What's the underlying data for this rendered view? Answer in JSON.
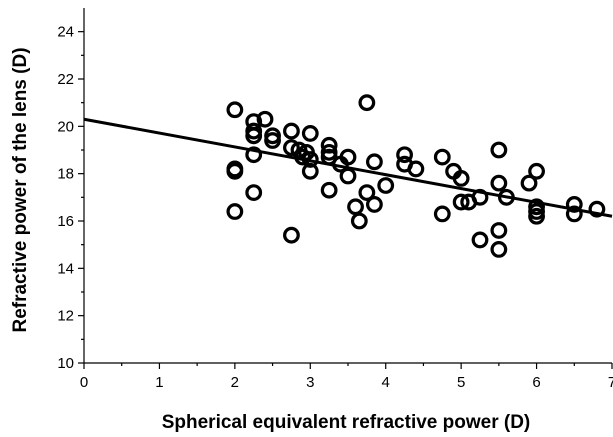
{
  "chart_data": {
    "type": "scatter",
    "title": "",
    "xlabel": "Spherical equivalent refractive power (D)",
    "ylabel": "Refractive power of the lens (D)",
    "xlim": [
      0,
      7
    ],
    "ylim": [
      10,
      25
    ],
    "xticks": [
      0,
      1,
      2,
      3,
      4,
      5,
      6,
      7
    ],
    "yticks": [
      10,
      12,
      14,
      16,
      18,
      20,
      22,
      24
    ],
    "grid": false,
    "legend": "none",
    "series": [
      {
        "points": [
          [
            2.0,
            20.7
          ],
          [
            2.0,
            18.2
          ],
          [
            2.0,
            18.1
          ],
          [
            2.0,
            16.4
          ],
          [
            2.25,
            20.2
          ],
          [
            2.25,
            19.8
          ],
          [
            2.25,
            19.6
          ],
          [
            2.25,
            18.8
          ],
          [
            2.25,
            17.2
          ],
          [
            2.4,
            20.3
          ],
          [
            2.5,
            19.6
          ],
          [
            2.5,
            19.4
          ],
          [
            2.75,
            19.8
          ],
          [
            2.75,
            19.1
          ],
          [
            2.75,
            15.4
          ],
          [
            2.85,
            19.0
          ],
          [
            2.9,
            18.7
          ],
          [
            2.95,
            18.9
          ],
          [
            3.0,
            19.7
          ],
          [
            3.0,
            18.6
          ],
          [
            3.0,
            18.1
          ],
          [
            3.25,
            19.2
          ],
          [
            3.25,
            18.9
          ],
          [
            3.25,
            18.7
          ],
          [
            3.25,
            17.3
          ],
          [
            3.4,
            18.4
          ],
          [
            3.5,
            18.7
          ],
          [
            3.5,
            17.9
          ],
          [
            3.6,
            16.6
          ],
          [
            3.65,
            16.0
          ],
          [
            3.75,
            21.0
          ],
          [
            3.75,
            17.2
          ],
          [
            3.85,
            18.5
          ],
          [
            3.85,
            16.7
          ],
          [
            4.0,
            17.5
          ],
          [
            4.25,
            18.8
          ],
          [
            4.25,
            18.4
          ],
          [
            4.4,
            18.2
          ],
          [
            4.75,
            18.7
          ],
          [
            4.75,
            16.3
          ],
          [
            4.9,
            18.1
          ],
          [
            5.0,
            17.8
          ],
          [
            5.0,
            16.8
          ],
          [
            5.1,
            16.8
          ],
          [
            5.25,
            17.0
          ],
          [
            5.25,
            15.2
          ],
          [
            5.5,
            19.0
          ],
          [
            5.5,
            17.6
          ],
          [
            5.5,
            15.6
          ],
          [
            5.5,
            14.8
          ],
          [
            5.6,
            17.0
          ],
          [
            5.9,
            17.6
          ],
          [
            6.0,
            18.1
          ],
          [
            6.0,
            16.6
          ],
          [
            6.0,
            16.4
          ],
          [
            6.0,
            16.2
          ],
          [
            6.5,
            16.7
          ],
          [
            6.5,
            16.3
          ],
          [
            6.8,
            16.5
          ]
        ]
      }
    ],
    "fit_line": {
      "x": [
        0,
        7
      ],
      "y": [
        20.3,
        16.2
      ]
    }
  }
}
